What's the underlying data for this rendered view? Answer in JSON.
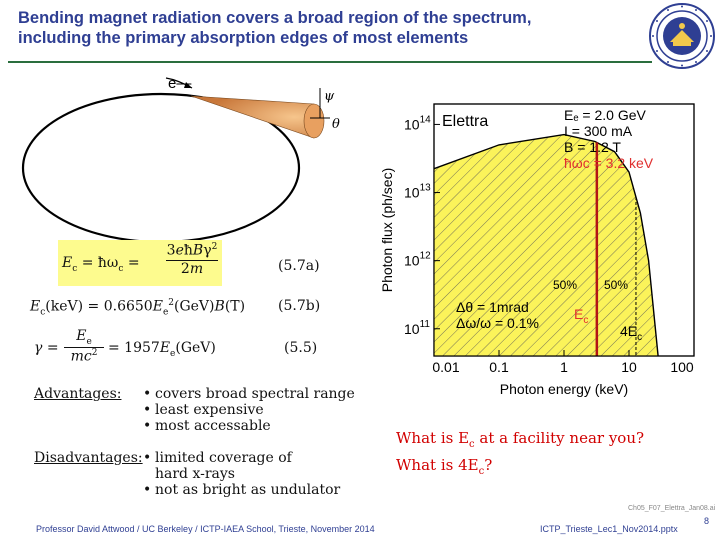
{
  "title_line1": "Bending magnet radiation covers a broad region of the spectrum,",
  "title_line2": "including the primary absorption edges of most elements",
  "diagram": {
    "electron_label": "e—",
    "psi_label": "ψ",
    "theta_label": "θ"
  },
  "equations": [
    {
      "number": "(5.7a)"
    },
    {
      "number": "(5.7b)"
    },
    {
      "number": "(5.5)"
    }
  ],
  "advantages_label": "Advantages:",
  "advantages": [
    "covers broad spectral range",
    "least expensive",
    "most accessable"
  ],
  "disadvantages_label": "Disadvantages:",
  "disadvantages": [
    "limited coverage of",
    "hard x-rays",
    "not as bright as undulator"
  ],
  "question1_pre": "What is E",
  "question1_sub": "c",
  "question1_post": " at a facility near you?",
  "question2_pre": "What is 4E",
  "question2_sub": "c",
  "question2_post": "?",
  "footer_left": "Professor David Attwood / UC Berkeley / ICTP-IAEA School, Trieste, November 2014",
  "footer_right": "ICTP_Trieste_Lec1_Nov2014.pptx",
  "page_number": "8",
  "credit": "Ch05_F07_Elettra_Jan08.ai",
  "chart_data": {
    "type": "area",
    "xlabel": "Photon energy (keV)",
    "ylabel": "Photon flux (ph/sec)",
    "x_ticks": [
      "0.01",
      "0.1",
      "1",
      "10",
      "100"
    ],
    "y_ticks": [
      "10",
      "10",
      "10",
      "10"
    ],
    "y_tick_exp": [
      "11",
      "12",
      "13",
      "14"
    ],
    "x_log_range": [
      -2,
      2
    ],
    "y_log_range": [
      10.6,
      14.3
    ],
    "facility": "Elettra",
    "params": [
      "Eₑ = 2.0 GeV",
      "I = 300 mA",
      "B = 1.2 T",
      "ħωc = 3.2 keV"
    ],
    "annotations": {
      "dtheta": "Δθ = 1mrad",
      "dw": "Δω/ω = 0.1%",
      "pct1": "50%",
      "pct2": "50%",
      "ec": "E",
      "ec_sub": "c",
      "fourec": "4E",
      "fourec_sub": "c"
    },
    "curve": {
      "x": [
        0.01,
        0.1,
        1,
        3,
        6,
        10,
        15,
        20,
        28
      ],
      "y": [
        13.35,
        13.7,
        13.85,
        13.75,
        13.6,
        13.3,
        12.7,
        12.0,
        10.6
      ]
    },
    "ec_keV": 3.2,
    "fourec_keV": 12.8,
    "colors": {
      "fill": "#fbf35a",
      "ec_line": "#b21515",
      "red_text": "#e03030"
    }
  }
}
